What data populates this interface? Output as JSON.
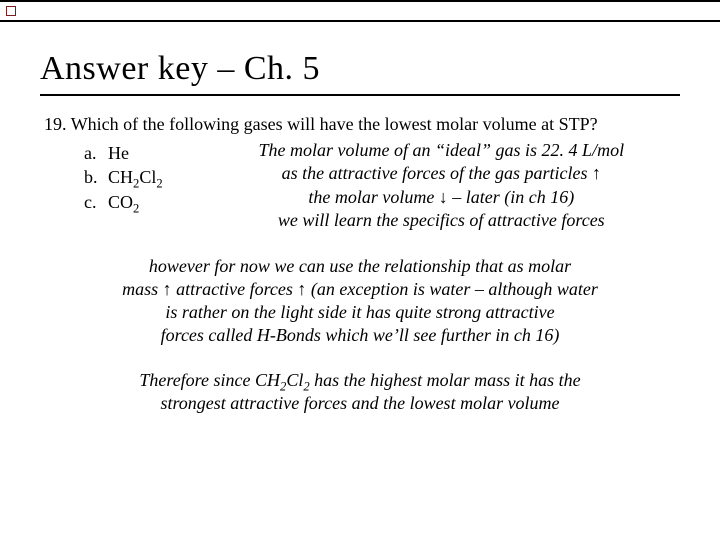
{
  "colors": {
    "background": "#ffffff",
    "text": "#000000",
    "rule": "#000000",
    "accent_square_border": "#7a1f1f"
  },
  "typography": {
    "title_fontsize_pt": 26,
    "body_fontsize_pt": 14,
    "font_family": "Times New Roman"
  },
  "title": "Answer key – Ch. 5",
  "question": {
    "number": "19.",
    "text": "Which of the following gases will have the lowest molar volume at STP?",
    "options": [
      {
        "letter": "a.",
        "label_html": "He"
      },
      {
        "letter": "b.",
        "label_html": "CH<sub>2</sub>Cl<sub>2</sub>"
      },
      {
        "letter": "c.",
        "label_html": "CO<sub>2</sub>"
      }
    ]
  },
  "notes": {
    "n1_line1": "The molar volume of an “ideal” gas is 22. 4 L/mol",
    "n1_line2": "as the attractive forces of the gas particles ↑",
    "n1_line3": "the molar volume ↓ – later (in ch 16)",
    "n1_line4": "we will learn the specifics of attractive forces",
    "n2_line1": "however for now we can use the relationship that as molar",
    "n2_line2": "mass ↑ attractive forces ↑ (an exception is water – although water",
    "n2_line3": "is rather on the light side it has quite strong attractive",
    "n2_line4": "forces called H-Bonds which we’ll see further in ch 16)",
    "n3_line1_pre": "Therefore since CH",
    "n3_line1_mid": "Cl",
    "n3_line1_post": " has the highest molar mass it has the",
    "n3_line2": "strongest attractive forces and the lowest molar volume"
  }
}
